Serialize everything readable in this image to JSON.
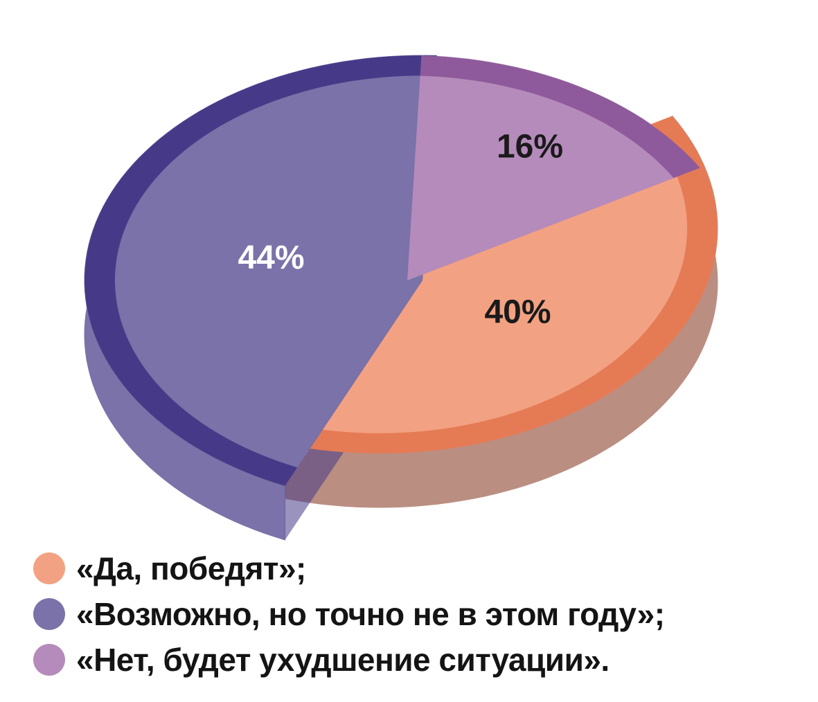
{
  "chart_data": {
    "type": "pie",
    "style": "3d-exploded",
    "slices": [
      {
        "label": "«Да, победят»;",
        "value": 40,
        "value_label": "40%",
        "color": "#f2a283",
        "color_side": "#bb8e82",
        "color_rim": "#e57b55",
        "label_color": "#1a1a1a"
      },
      {
        "label": "«Возможно, но точно не в этом году»;",
        "value": 44,
        "value_label": "44%",
        "color": "#7a72a8",
        "color_side": "#7a72a8",
        "color_rim": "#463a88",
        "label_color": "#ffffff"
      },
      {
        "label": "«Нет, будет ухудшение ситуации».",
        "value": 16,
        "value_label": "16%",
        "color": "#b58bbb",
        "color_side": "#b08ab8",
        "color_rim": "#8e5a9b",
        "label_color": "#1a1a1a"
      }
    ],
    "legend_position": "bottom"
  }
}
